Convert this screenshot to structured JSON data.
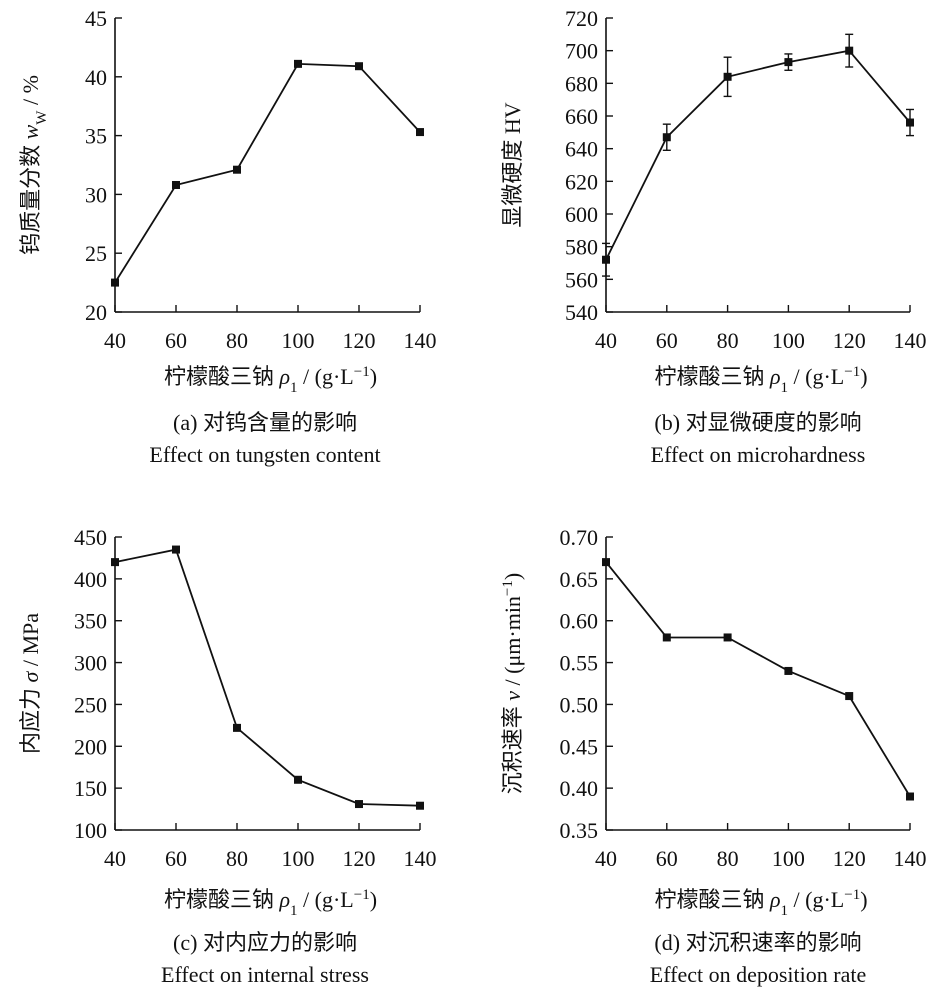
{
  "chart_data": [
    {
      "panel": "a",
      "type": "line",
      "x": [
        40,
        60,
        80,
        100,
        120,
        140
      ],
      "series": [
        {
          "values": [
            22.5,
            30.8,
            32.1,
            41.1,
            40.9,
            35.3
          ]
        }
      ],
      "xlim": [
        40,
        140
      ],
      "ylim": [
        20,
        45
      ],
      "xticks": [
        "40",
        "60",
        "80",
        "100",
        "120",
        "140"
      ],
      "yticks": [
        "20",
        "25",
        "30",
        "35",
        "40",
        "45"
      ],
      "ylabel": "钨质量分数 wW / %",
      "xlabel": "柠檬酸三钠 ρ1 / (g·L−1)",
      "caption_cn": "(a) 对钨含量的影响",
      "caption_en": "Effect on tungsten content"
    },
    {
      "panel": "b",
      "type": "line",
      "x": [
        40,
        60,
        80,
        100,
        120,
        140
      ],
      "series": [
        {
          "values": [
            572,
            647,
            684,
            693,
            700,
            656
          ],
          "error": [
            10,
            8,
            12,
            5,
            10,
            8
          ]
        }
      ],
      "xlim": [
        40,
        140
      ],
      "ylim": [
        540,
        720
      ],
      "xticks": [
        "40",
        "60",
        "80",
        "100",
        "120",
        "140"
      ],
      "yticks": [
        "540",
        "560",
        "580",
        "600",
        "620",
        "640",
        "660",
        "680",
        "700",
        "720"
      ],
      "ylabel": "显微硬度 HV",
      "xlabel": "柠檬酸三钠 ρ1 / (g·L−1)",
      "caption_cn": "(b) 对显微硬度的影响",
      "caption_en": "Effect on microhardness"
    },
    {
      "panel": "c",
      "type": "line",
      "x": [
        40,
        60,
        80,
        100,
        120,
        140
      ],
      "series": [
        {
          "values": [
            420,
            435,
            222,
            160,
            131,
            129
          ]
        }
      ],
      "xlim": [
        40,
        140
      ],
      "ylim": [
        100,
        450
      ],
      "xticks": [
        "40",
        "60",
        "80",
        "100",
        "120",
        "140"
      ],
      "yticks": [
        "100",
        "150",
        "200",
        "250",
        "300",
        "350",
        "400",
        "450"
      ],
      "ylabel": "内应力 σ / MPa",
      "xlabel": "柠檬酸三钠 ρ1 / (g·L−1)",
      "caption_cn": "(c) 对内应力的影响",
      "caption_en": "Effect on internal stress"
    },
    {
      "panel": "d",
      "type": "line",
      "x": [
        40,
        60,
        80,
        100,
        120,
        140
      ],
      "series": [
        {
          "values": [
            0.67,
            0.58,
            0.58,
            0.54,
            0.51,
            0.39
          ]
        }
      ],
      "xlim": [
        40,
        140
      ],
      "ylim": [
        0.35,
        0.7
      ],
      "xticks": [
        "40",
        "60",
        "80",
        "100",
        "120",
        "140"
      ],
      "yticks": [
        "0.35",
        "0.40",
        "0.45",
        "0.50",
        "0.55",
        "0.60",
        "0.65",
        "0.70"
      ],
      "ylabel": "沉积速率 v / (μm·min−1)",
      "xlabel": "柠檬酸三钠 ρ1 / (g·L−1)",
      "caption_cn": "(d) 对沉积速率的影响",
      "caption_en": "Effect on deposition rate"
    }
  ]
}
